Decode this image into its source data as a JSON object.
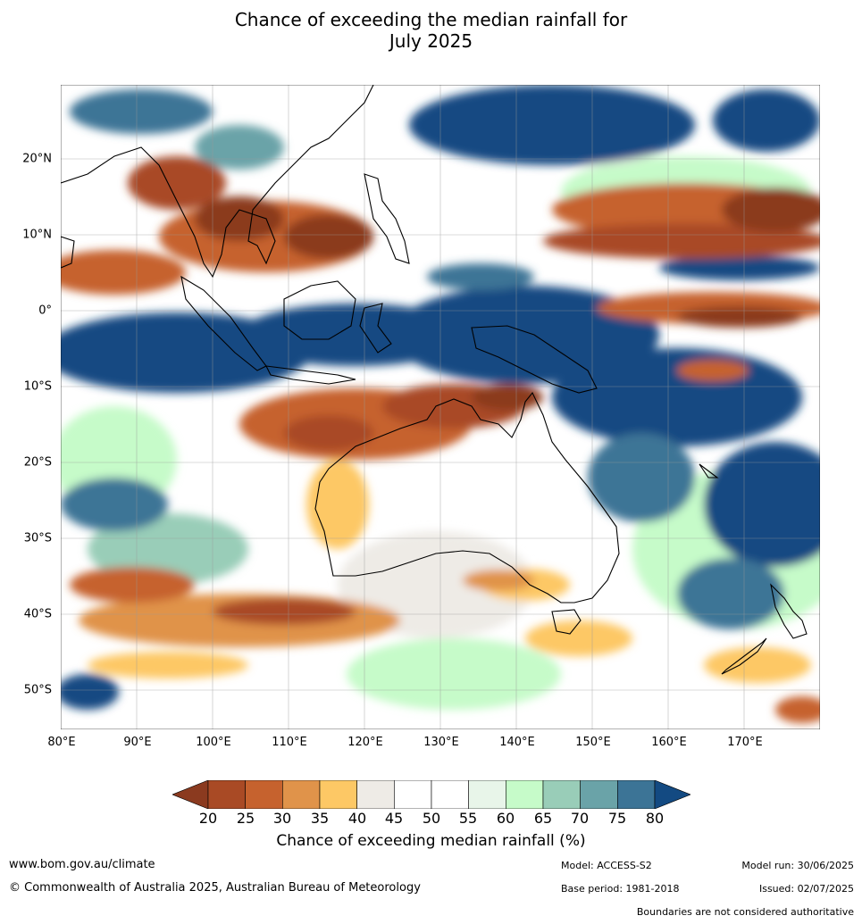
{
  "title_line1": "Chance of exceeding the median rainfall for",
  "title_line2": "July 2025",
  "lat_labels": [
    "20°N",
    "10°N",
    "0°",
    "10°S",
    "20°S",
    "30°S",
    "40°S",
    "50°S"
  ],
  "lon_labels": [
    "80°E",
    "90°E",
    "100°E",
    "110°E",
    "120°E",
    "130°E",
    "140°E",
    "150°E",
    "160°E",
    "170°E"
  ],
  "colorbar": {
    "ticks": [
      "20",
      "25",
      "30",
      "35",
      "40",
      "45",
      "50",
      "55",
      "60",
      "65",
      "70",
      "75",
      "80"
    ],
    "colors": [
      "#8b3a1f",
      "#a94a25",
      "#c6622e",
      "#e0934a",
      "#fdc865",
      "#eeebe6",
      "#ffffff",
      "#ffffff",
      "#e8f5e9",
      "#c6fbc9",
      "#99cdb8",
      "#6aa3a8",
      "#3c7496",
      "#134a82"
    ],
    "title": "Chance of exceeding median rainfall (%)"
  },
  "footer": {
    "website": "www.bom.gov.au/climate",
    "copyright": "© Commonwealth of Australia 2025, Australian Bureau of Meteorology",
    "model": "Model: ACCESS-S2",
    "base_period": "Base period: 1981-2018",
    "model_run": "Model run: 30/06/2025",
    "issued": "Issued: 02/07/2025",
    "disclaimer": "Boundaries are not considered authoritative"
  }
}
